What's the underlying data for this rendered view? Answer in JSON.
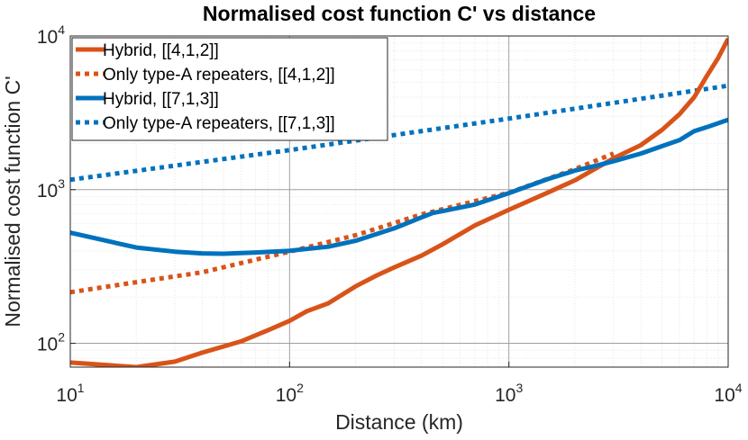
{
  "chart_data": {
    "type": "line",
    "title": "Normalised cost function C' vs distance",
    "xlabel": "Distance (km)",
    "ylabel": "Normalised cost function C'",
    "xscale": "log",
    "yscale": "log",
    "xlim": [
      10,
      10000
    ],
    "ylim": [
      70,
      10000
    ],
    "xticks": [
      {
        "base": "10",
        "exp": "1",
        "value": 10
      },
      {
        "base": "10",
        "exp": "2",
        "value": 100
      },
      {
        "base": "10",
        "exp": "3",
        "value": 1000
      },
      {
        "base": "10",
        "exp": "4",
        "value": 10000
      }
    ],
    "yticks": [
      {
        "base": "10",
        "exp": "2",
        "value": 100
      },
      {
        "base": "10",
        "exp": "3",
        "value": 1000
      },
      {
        "base": "10",
        "exp": "4",
        "value": 10000
      }
    ],
    "grid": true,
    "legend_position": "top-left",
    "series": [
      {
        "name": "Hybrid, [[4,1,2]]",
        "color": "#D95319",
        "style": "solid",
        "x": [
          10,
          15,
          20,
          30,
          40,
          60,
          80,
          100,
          120,
          150,
          200,
          250,
          300,
          400,
          500,
          700,
          1000,
          1500,
          2000,
          3000,
          4000,
          5000,
          6000,
          7000,
          8000,
          9000,
          10000
        ],
        "y": [
          75,
          72,
          70,
          76,
          87,
          103,
          122,
          140,
          162,
          182,
          235,
          277,
          312,
          372,
          442,
          585,
          740,
          955,
          1150,
          1600,
          1950,
          2450,
          3100,
          4000,
          5500,
          7200,
          9600
        ]
      },
      {
        "name": "Only type-A repeaters, [[4,1,2]]",
        "color": "#D95319",
        "style": "dotted",
        "x": [
          10,
          20,
          40,
          100,
          200,
          400,
          1000,
          2000,
          3000
        ],
        "y": [
          215,
          250,
          290,
          395,
          505,
          690,
          955,
          1360,
          1720
        ]
      },
      {
        "name": "Hybrid, [[7,1,3]]",
        "color": "#0072BD",
        "style": "solid",
        "x": [
          10,
          20,
          30,
          40,
          50,
          70,
          100,
          150,
          200,
          300,
          400,
          450,
          500,
          700,
          1000,
          1500,
          2000,
          2500,
          3000,
          4000,
          5000,
          6000,
          7000,
          8000,
          10000
        ],
        "y": [
          525,
          420,
          395,
          385,
          383,
          390,
          400,
          425,
          465,
          560,
          660,
          705,
          725,
          800,
          950,
          1170,
          1330,
          1430,
          1530,
          1720,
          1920,
          2100,
          2400,
          2550,
          2850
        ]
      },
      {
        "name": "Only type-A repeaters, [[7,1,3]]",
        "color": "#0072BD",
        "style": "dotted",
        "x": [
          10,
          100,
          1000,
          10000
        ],
        "y": [
          1160,
          1810,
          2900,
          4750
        ]
      }
    ]
  }
}
